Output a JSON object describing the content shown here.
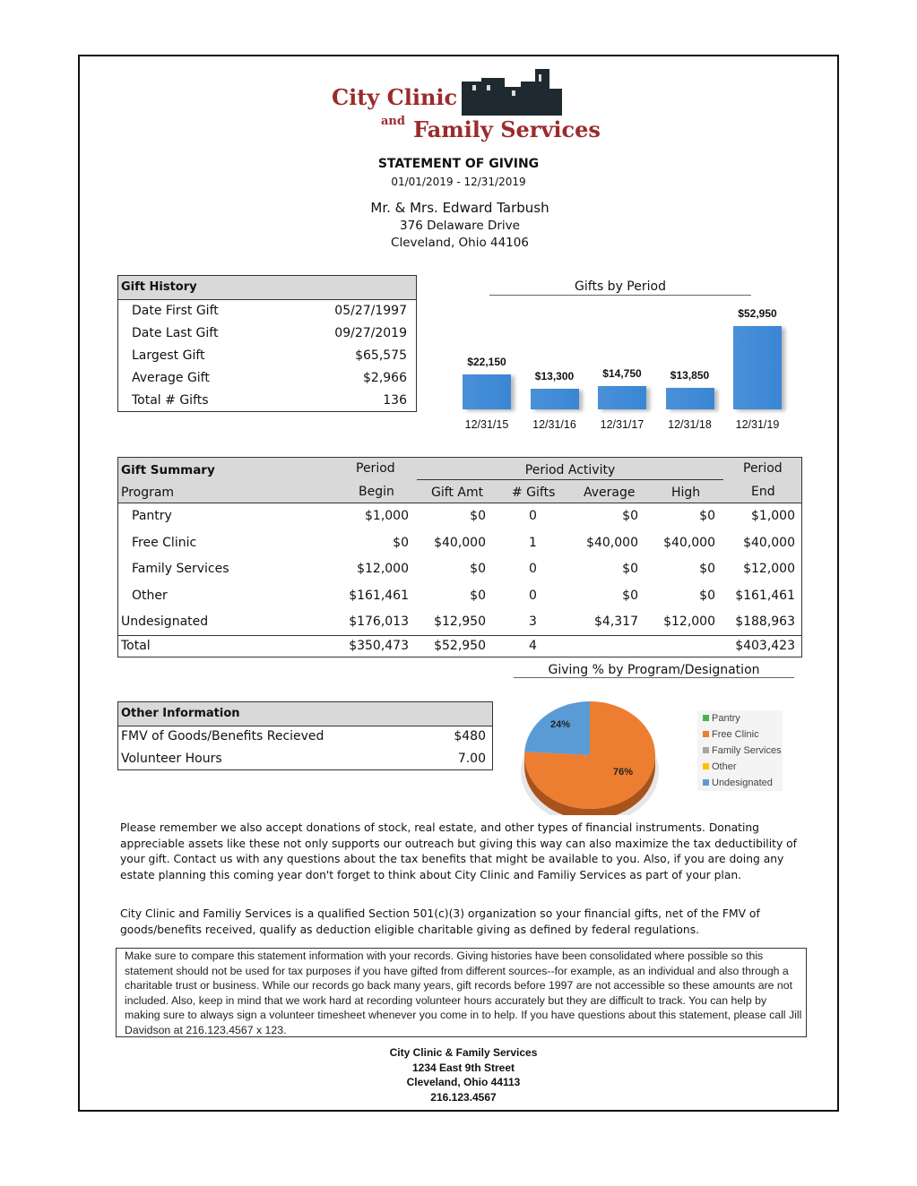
{
  "logo": {
    "line1": "City Clinic",
    "and": "and",
    "line2": "Family Services"
  },
  "header": {
    "title": "STATEMENT OF GIVING",
    "period": "01/01/2019  -  12/31/2019",
    "name": "Mr. & Mrs. Edward Tarbush",
    "address": "376 Delaware Drive",
    "city": "Cleveland, Ohio 44106"
  },
  "gift_history": {
    "title": "Gift History",
    "rows": [
      {
        "label": "Date First Gift",
        "value": "05/27/1997"
      },
      {
        "label": "Date Last Gift",
        "value": "09/27/2019"
      },
      {
        "label": "Largest Gift",
        "value": "$65,575"
      },
      {
        "label": "Average Gift",
        "value": "$2,966"
      },
      {
        "label": "Total # Gifts",
        "value": "136"
      }
    ]
  },
  "chart_data": [
    {
      "type": "bar",
      "title": "Gifts  by Period",
      "categories": [
        "12/31/15",
        "12/31/16",
        "12/31/17",
        "12/31/18",
        "12/31/19"
      ],
      "values": [
        22150,
        13300,
        14750,
        13850,
        52950
      ],
      "labels": [
        "$22,150",
        "$13,300",
        "$14,750",
        "$13,850",
        "$52,950"
      ],
      "color": "#3a86d4"
    },
    {
      "type": "pie",
      "title": "Giving % by Program/Designation",
      "categories": [
        "Pantry",
        "Free Clinic",
        "Family Services",
        "Other",
        "Undesignated"
      ],
      "values": [
        0,
        76,
        0,
        0,
        24
      ],
      "labels": [
        "",
        "76%",
        "",
        "",
        "24%"
      ],
      "colors": [
        "#4caf50",
        "#ed7d31",
        "#a5a5a5",
        "#ffc000",
        "#5b9bd5"
      ],
      "legend": "right"
    }
  ],
  "summary": {
    "title": "Gift Summary",
    "program_label": "Program",
    "period_label": "Period",
    "begin_label": "Begin",
    "activity_label": "Period Activity",
    "end_label": "End",
    "cols": [
      "Gift Amt",
      "# Gifts",
      "Average",
      "High"
    ],
    "rows": [
      {
        "program": "Pantry",
        "begin": "$1,000",
        "amt": "$0",
        "gifts": "0",
        "avg": "$0",
        "high": "$0",
        "end": "$1,000"
      },
      {
        "program": "Free Clinic",
        "begin": "$0",
        "amt": "$40,000",
        "gifts": "1",
        "avg": "$40,000",
        "high": "$40,000",
        "end": "$40,000"
      },
      {
        "program": "Family Services",
        "begin": "$12,000",
        "amt": "$0",
        "gifts": "0",
        "avg": "$0",
        "high": "$0",
        "end": "$12,000"
      },
      {
        "program": "Other",
        "begin": "$161,461",
        "amt": "$0",
        "gifts": "0",
        "avg": "$0",
        "high": "$0",
        "end": "$161,461"
      },
      {
        "program": "Undesignated",
        "begin": "$176,013",
        "amt": "$12,950",
        "gifts": "3",
        "avg": "$4,317",
        "high": "$12,000",
        "end": "$188,963"
      }
    ],
    "total": {
      "program": "Total",
      "begin": "$350,473",
      "amt": "$52,950",
      "gifts": "4",
      "avg": "",
      "high": "",
      "end": "$403,423"
    }
  },
  "other_info": {
    "title": "Other Information",
    "rows": [
      {
        "label": "FMV of Goods/Benefits Recieved",
        "value": "$480"
      },
      {
        "label": "Volunteer Hours",
        "value": "7.00"
      }
    ]
  },
  "paragraphs": [
    "Please remember we also accept donations of stock, real estate, and other types of financial instruments.  Donating appreciable assets like these not only supports our outreach but giving this way can also maximize the tax deductibility of your gift. Contact us with any questions about the tax benefits that might be available to you. Also, if you are doing any estate planning this coming year don't forget to think about City Clinic and Familiy Services as part of your plan.",
    "City Clinic and Familiy Services is a qualified Section 501(c)(3) organization so your financial gifts, net of the FMV of goods/benefits received, qualify as deduction eligible charitable giving as defined by federal regulations."
  ],
  "note": "Make sure to compare this statement information with your records. Giving histories have been consolidated where possible so this statement should not be used for tax purposes if you have gifted from different sources--for example, as an individual and also through a charitable trust or business. While our records go back many years, gift records before 1997 are not accessible so these amounts are not included. Also, keep in mind that we work hard at recording  volunteer hours accurately but they are difficult to track. You can help by making sure to always sign a volunteer timesheet whenever you come in to help. If you have questions about this  statement, please call Jill Davidson at 216.123.4567 x 123.",
  "footer": {
    "org": "City Clinic & Family Services",
    "street": "1234 East 9th Street",
    "city": "Cleveland, Ohio 44113",
    "phone": "216.123.4567"
  }
}
